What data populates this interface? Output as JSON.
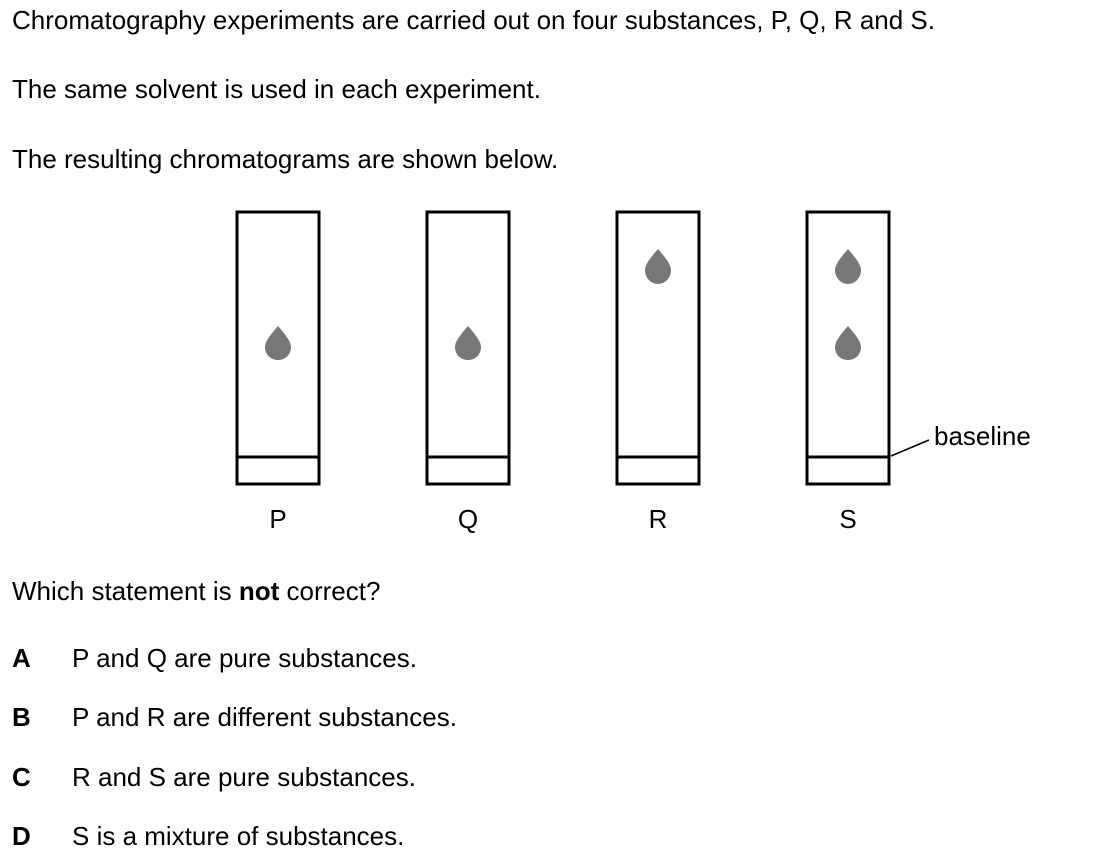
{
  "intro": {
    "line1": "Chromatography experiments are carried out on four substances, P, Q, R and S.",
    "line2": "The same solvent is used in each experiment.",
    "line3": "The resulting chromatograms are shown below."
  },
  "diagram": {
    "strips": [
      {
        "label": "P",
        "spots": 1
      },
      {
        "label": "Q",
        "spots": 1
      },
      {
        "label": "R",
        "spots": 1
      },
      {
        "label": "S",
        "spots": 2
      }
    ],
    "baseline_label": "baseline",
    "spot_color": "#777777"
  },
  "question": {
    "prefix": "Which statement is ",
    "emphasis": "not",
    "suffix": " correct?"
  },
  "options": [
    {
      "letter": "A",
      "text": "P and Q are pure substances."
    },
    {
      "letter": "B",
      "text": "P and R are different substances."
    },
    {
      "letter": "C",
      "text": "R and S are pure substances."
    },
    {
      "letter": "D",
      "text": "S is a mixture of substances."
    }
  ]
}
